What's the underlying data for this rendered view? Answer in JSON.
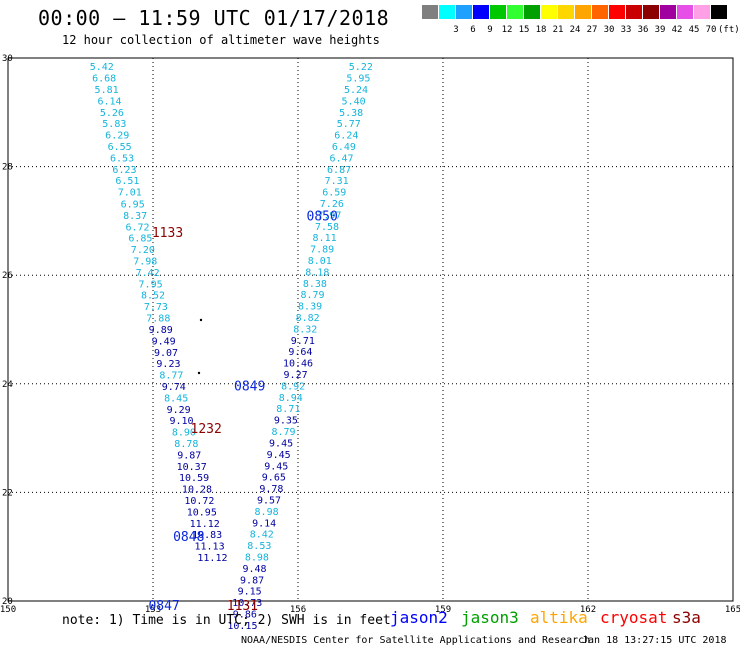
{
  "title": "00:00 – 11:59 UTC 01/17/2018",
  "subtitle": "12 hour collection of altimeter wave heights",
  "legend": {
    "unit": "(ft)",
    "bins": [
      {
        "label": "",
        "color": "#7f7f7f"
      },
      {
        "label": "3",
        "color": "#00ffff"
      },
      {
        "label": "6",
        "color": "#1ea0ff"
      },
      {
        "label": "9",
        "color": "#0000ff"
      },
      {
        "label": "12",
        "color": "#00c800"
      },
      {
        "label": "15",
        "color": "#32ff32"
      },
      {
        "label": "18",
        "color": "#00a000"
      },
      {
        "label": "21",
        "color": "#ffff00"
      },
      {
        "label": "24",
        "color": "#ffd700"
      },
      {
        "label": "27",
        "color": "#ffa500"
      },
      {
        "label": "30",
        "color": "#ff6400"
      },
      {
        "label": "33",
        "color": "#ff0000"
      },
      {
        "label": "36",
        "color": "#c80000"
      },
      {
        "label": "39",
        "color": "#8b0000"
      },
      {
        "label": "42",
        "color": "#a000a0"
      },
      {
        "label": "45",
        "color": "#e650e6"
      },
      {
        "label": "70",
        "color": "#ffa0e6"
      },
      {
        "label": "",
        "color": "#000000"
      }
    ]
  },
  "map": {
    "lon_min": 150,
    "lon_max": 165,
    "lat_min": 20,
    "lat_max": 30,
    "lon_ticks": [
      "150",
      "153",
      "156",
      "159",
      "162",
      "165"
    ],
    "lat_ticks": [
      "20",
      "22",
      "24",
      "26",
      "28",
      "30"
    ],
    "colors": {
      "cyan": "#14b4dc",
      "navy": "#0000a0",
      "blue": "#0a28dc",
      "maroon": "#8b0000"
    },
    "passes": [
      {
        "label": "1133",
        "lon": 153.3,
        "lat": 26.8,
        "color": "maroon"
      },
      {
        "label": "0850",
        "lon": 156.5,
        "lat": 27.1,
        "color": "blue"
      },
      {
        "label": "0849",
        "lon": 155.0,
        "lat": 23.97,
        "color": "blue"
      },
      {
        "label": "1232",
        "lon": 154.1,
        "lat": 23.19,
        "color": "maroon"
      },
      {
        "label": "0848",
        "lon": 153.74,
        "lat": 21.2,
        "color": "blue"
      },
      {
        "label": "0847",
        "lon": 153.23,
        "lat": 19.93,
        "color": "blue"
      },
      {
        "label": "1131",
        "lon": 154.85,
        "lat": 19.93,
        "color": "maroon"
      }
    ],
    "tracks": [
      {
        "name": "left",
        "items": [
          [
            "5.42",
            151.94,
            29.85,
            "cyan"
          ],
          [
            "6.68",
            151.99,
            29.64,
            "cyan"
          ],
          [
            "5.81",
            152.04,
            29.43,
            "cyan"
          ],
          [
            "6.14",
            152.1,
            29.22,
            "cyan"
          ],
          [
            "5.26",
            152.15,
            29.01,
            "cyan"
          ],
          [
            "5.83",
            152.2,
            28.8,
            "cyan"
          ],
          [
            "6.29",
            152.26,
            28.59,
            "cyan"
          ],
          [
            "6.55",
            152.31,
            28.38,
            "cyan"
          ],
          [
            "6.53",
            152.36,
            28.17,
            "cyan"
          ],
          [
            "6.23",
            152.41,
            27.96,
            "cyan"
          ],
          [
            "6.51",
            152.47,
            27.75,
            "cyan"
          ],
          [
            "7.01",
            152.52,
            27.54,
            "cyan"
          ],
          [
            "6.95",
            152.58,
            27.32,
            "cyan"
          ],
          [
            "8.37",
            152.63,
            27.11,
            "cyan"
          ],
          [
            "6.72",
            152.68,
            26.9,
            "cyan"
          ],
          [
            "6.85",
            152.74,
            26.69,
            "cyan"
          ],
          [
            "7.20",
            152.79,
            26.48,
            "cyan"
          ],
          [
            "7.98",
            152.84,
            26.27,
            "cyan"
          ],
          [
            "7.42",
            152.89,
            26.06,
            "cyan"
          ],
          [
            "7.95",
            152.95,
            25.85,
            "cyan"
          ],
          [
            "8.52",
            153.0,
            25.64,
            "cyan"
          ],
          [
            "7.73",
            153.06,
            25.43,
            "cyan"
          ],
          [
            "7.88",
            153.11,
            25.22,
            "cyan"
          ],
          [
            "9.89",
            153.16,
            25.01,
            "navy"
          ],
          [
            "9.49",
            153.22,
            24.8,
            "navy"
          ],
          [
            "9.07",
            153.27,
            24.59,
            "navy"
          ],
          [
            "9.23",
            153.32,
            24.38,
            "navy"
          ],
          [
            "8.77",
            153.38,
            24.17,
            "cyan"
          ],
          [
            "9.74",
            153.43,
            23.96,
            "navy"
          ],
          [
            "8.45",
            153.48,
            23.75,
            "cyan"
          ],
          [
            "9.29",
            153.53,
            23.54,
            "navy"
          ],
          [
            "9.10",
            153.59,
            23.33,
            "navy"
          ],
          [
            "8.90",
            153.64,
            23.12,
            "cyan"
          ],
          [
            "8.78",
            153.69,
            22.91,
            "cyan"
          ],
          [
            "9.87",
            153.75,
            22.7,
            "navy"
          ],
          [
            "10.37",
            153.8,
            22.49,
            "navy"
          ],
          [
            "10.59",
            153.85,
            22.28,
            "navy"
          ],
          [
            "10.28",
            153.91,
            22.07,
            "navy"
          ],
          [
            "10.72",
            153.96,
            21.86,
            "navy"
          ],
          [
            "10.95",
            154.01,
            21.65,
            "navy"
          ],
          [
            "11.12",
            154.07,
            21.44,
            "navy"
          ],
          [
            "10.83",
            154.12,
            21.23,
            "navy"
          ],
          [
            "11.13",
            154.17,
            21.02,
            "navy"
          ],
          [
            "11.12",
            154.23,
            20.81,
            "navy"
          ]
        ]
      },
      {
        "name": "right",
        "items": [
          [
            "5.22",
            157.3,
            29.85,
            "cyan"
          ],
          [
            "5.95",
            157.25,
            29.64,
            "cyan"
          ],
          [
            "5.24",
            157.2,
            29.43,
            "cyan"
          ],
          [
            "5.40",
            157.15,
            29.22,
            "cyan"
          ],
          [
            "5.38",
            157.1,
            29.01,
            "cyan"
          ],
          [
            "5.77",
            157.05,
            28.8,
            "cyan"
          ],
          [
            "6.24",
            157.0,
            28.59,
            "cyan"
          ],
          [
            "6.49",
            156.95,
            28.38,
            "cyan"
          ],
          [
            "6.47",
            156.9,
            28.17,
            "cyan"
          ],
          [
            "6.87",
            156.85,
            27.96,
            "cyan"
          ],
          [
            "7.31",
            156.8,
            27.75,
            "cyan"
          ],
          [
            "6.59",
            156.75,
            27.54,
            "cyan"
          ],
          [
            "7.26",
            156.7,
            27.33,
            "cyan"
          ],
          [
            "7.97",
            156.65,
            27.12,
            "cyan"
          ],
          [
            "7.58",
            156.6,
            26.91,
            "cyan"
          ],
          [
            "8.11",
            156.55,
            26.7,
            "cyan"
          ],
          [
            "7.89",
            156.5,
            26.49,
            "cyan"
          ],
          [
            "8.01",
            156.45,
            26.28,
            "cyan"
          ],
          [
            "8.18",
            156.4,
            26.07,
            "cyan"
          ],
          [
            "8.38",
            156.35,
            25.86,
            "cyan"
          ],
          [
            "8.79",
            156.3,
            25.65,
            "cyan"
          ],
          [
            "8.39",
            156.25,
            25.44,
            "cyan"
          ],
          [
            "8.82",
            156.2,
            25.23,
            "cyan"
          ],
          [
            "8.32",
            156.15,
            25.02,
            "cyan"
          ],
          [
            "9.71",
            156.1,
            24.81,
            "navy"
          ],
          [
            "9.64",
            156.05,
            24.6,
            "navy"
          ],
          [
            "10.46",
            156.0,
            24.39,
            "navy"
          ],
          [
            "9.27",
            155.95,
            24.18,
            "navy"
          ],
          [
            "8.92",
            155.9,
            23.97,
            "cyan"
          ],
          [
            "8.94",
            155.85,
            23.76,
            "cyan"
          ],
          [
            "8.71",
            155.8,
            23.55,
            "cyan"
          ],
          [
            "9.35",
            155.75,
            23.34,
            "navy"
          ],
          [
            "8.79",
            155.7,
            23.13,
            "cyan"
          ],
          [
            "9.45",
            155.65,
            22.92,
            "navy"
          ],
          [
            "9.45",
            155.6,
            22.71,
            "navy"
          ],
          [
            "9.45",
            155.55,
            22.5,
            "navy"
          ],
          [
            "9.65",
            155.5,
            22.29,
            "navy"
          ],
          [
            "9.78",
            155.45,
            22.08,
            "navy"
          ],
          [
            "9.57",
            155.4,
            21.87,
            "navy"
          ],
          [
            "8.98",
            155.35,
            21.66,
            "cyan"
          ],
          [
            "9.14",
            155.3,
            21.45,
            "navy"
          ],
          [
            "8.42",
            155.25,
            21.24,
            "cyan"
          ],
          [
            "8.53",
            155.2,
            21.03,
            "cyan"
          ],
          [
            "8.98",
            155.15,
            20.82,
            "cyan"
          ],
          [
            "9.48",
            155.1,
            20.61,
            "navy"
          ],
          [
            "9.87",
            155.05,
            20.4,
            "navy"
          ],
          [
            "9.15",
            155.0,
            20.19,
            "navy"
          ],
          [
            "10.73",
            154.95,
            19.98,
            "navy"
          ],
          [
            "9.86",
            154.9,
            19.77,
            "navy"
          ],
          [
            "10.15",
            154.85,
            19.56,
            "navy"
          ]
        ]
      }
    ]
  },
  "footer": {
    "note": "note: 1) Time is in UTC; 2) SWH is in feet",
    "satellites": [
      {
        "name": "jason2",
        "color": "#0000ff"
      },
      {
        "name": "jason3",
        "color": "#00a000"
      },
      {
        "name": "altika",
        "color": "#ffa500"
      },
      {
        "name": "cryosat",
        "color": "#ff0000"
      },
      {
        "name": "s3a",
        "color": "#8b0000"
      }
    ],
    "credit": "NOAA/NESDIS Center for Satellite Applications and Research",
    "timestamp": "Jan 18 13:27:15 UTC 2018"
  }
}
